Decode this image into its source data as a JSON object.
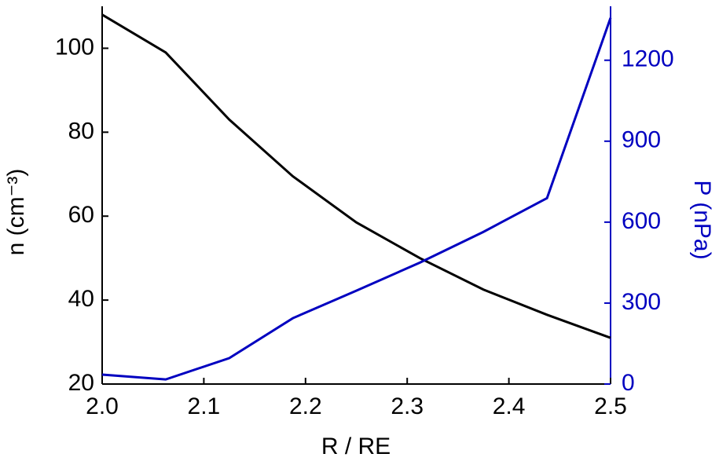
{
  "chart_data": {
    "type": "line",
    "xlabel": "R / RE",
    "ylabel": "n (cm⁻³)",
    "y2label": "P (nPa)",
    "x": [
      2.0,
      2.0625,
      2.125,
      2.1875,
      2.25,
      2.3125,
      2.375,
      2.4375,
      2.5
    ],
    "series": [
      {
        "name": "n",
        "color": "#000000",
        "values": [
          108,
          99,
          83,
          69.5,
          58.5,
          50,
          42.5,
          36.5,
          31
        ]
      },
      {
        "name": "P",
        "color": "#0000c0",
        "axis": "y2",
        "values": [
          35,
          17,
          96,
          244,
          346,
          450,
          564,
          689,
          1357
        ]
      }
    ],
    "xlim": [
      2.0,
      2.5
    ],
    "xticks": [
      {
        "value": 2.0,
        "label": "2.0"
      },
      {
        "value": 2.1,
        "label": "2.1"
      },
      {
        "value": 2.2,
        "label": "2.2"
      },
      {
        "value": 2.3,
        "label": "2.3"
      },
      {
        "value": 2.4,
        "label": "2.4"
      },
      {
        "value": 2.5,
        "label": "2.5"
      }
    ],
    "ylim": [
      20,
      110
    ],
    "yticks": [
      20,
      40,
      60,
      80,
      100
    ],
    "y2lim": [
      0,
      1400
    ],
    "y2ticks": [
      0,
      300,
      600,
      900,
      1200
    ]
  }
}
